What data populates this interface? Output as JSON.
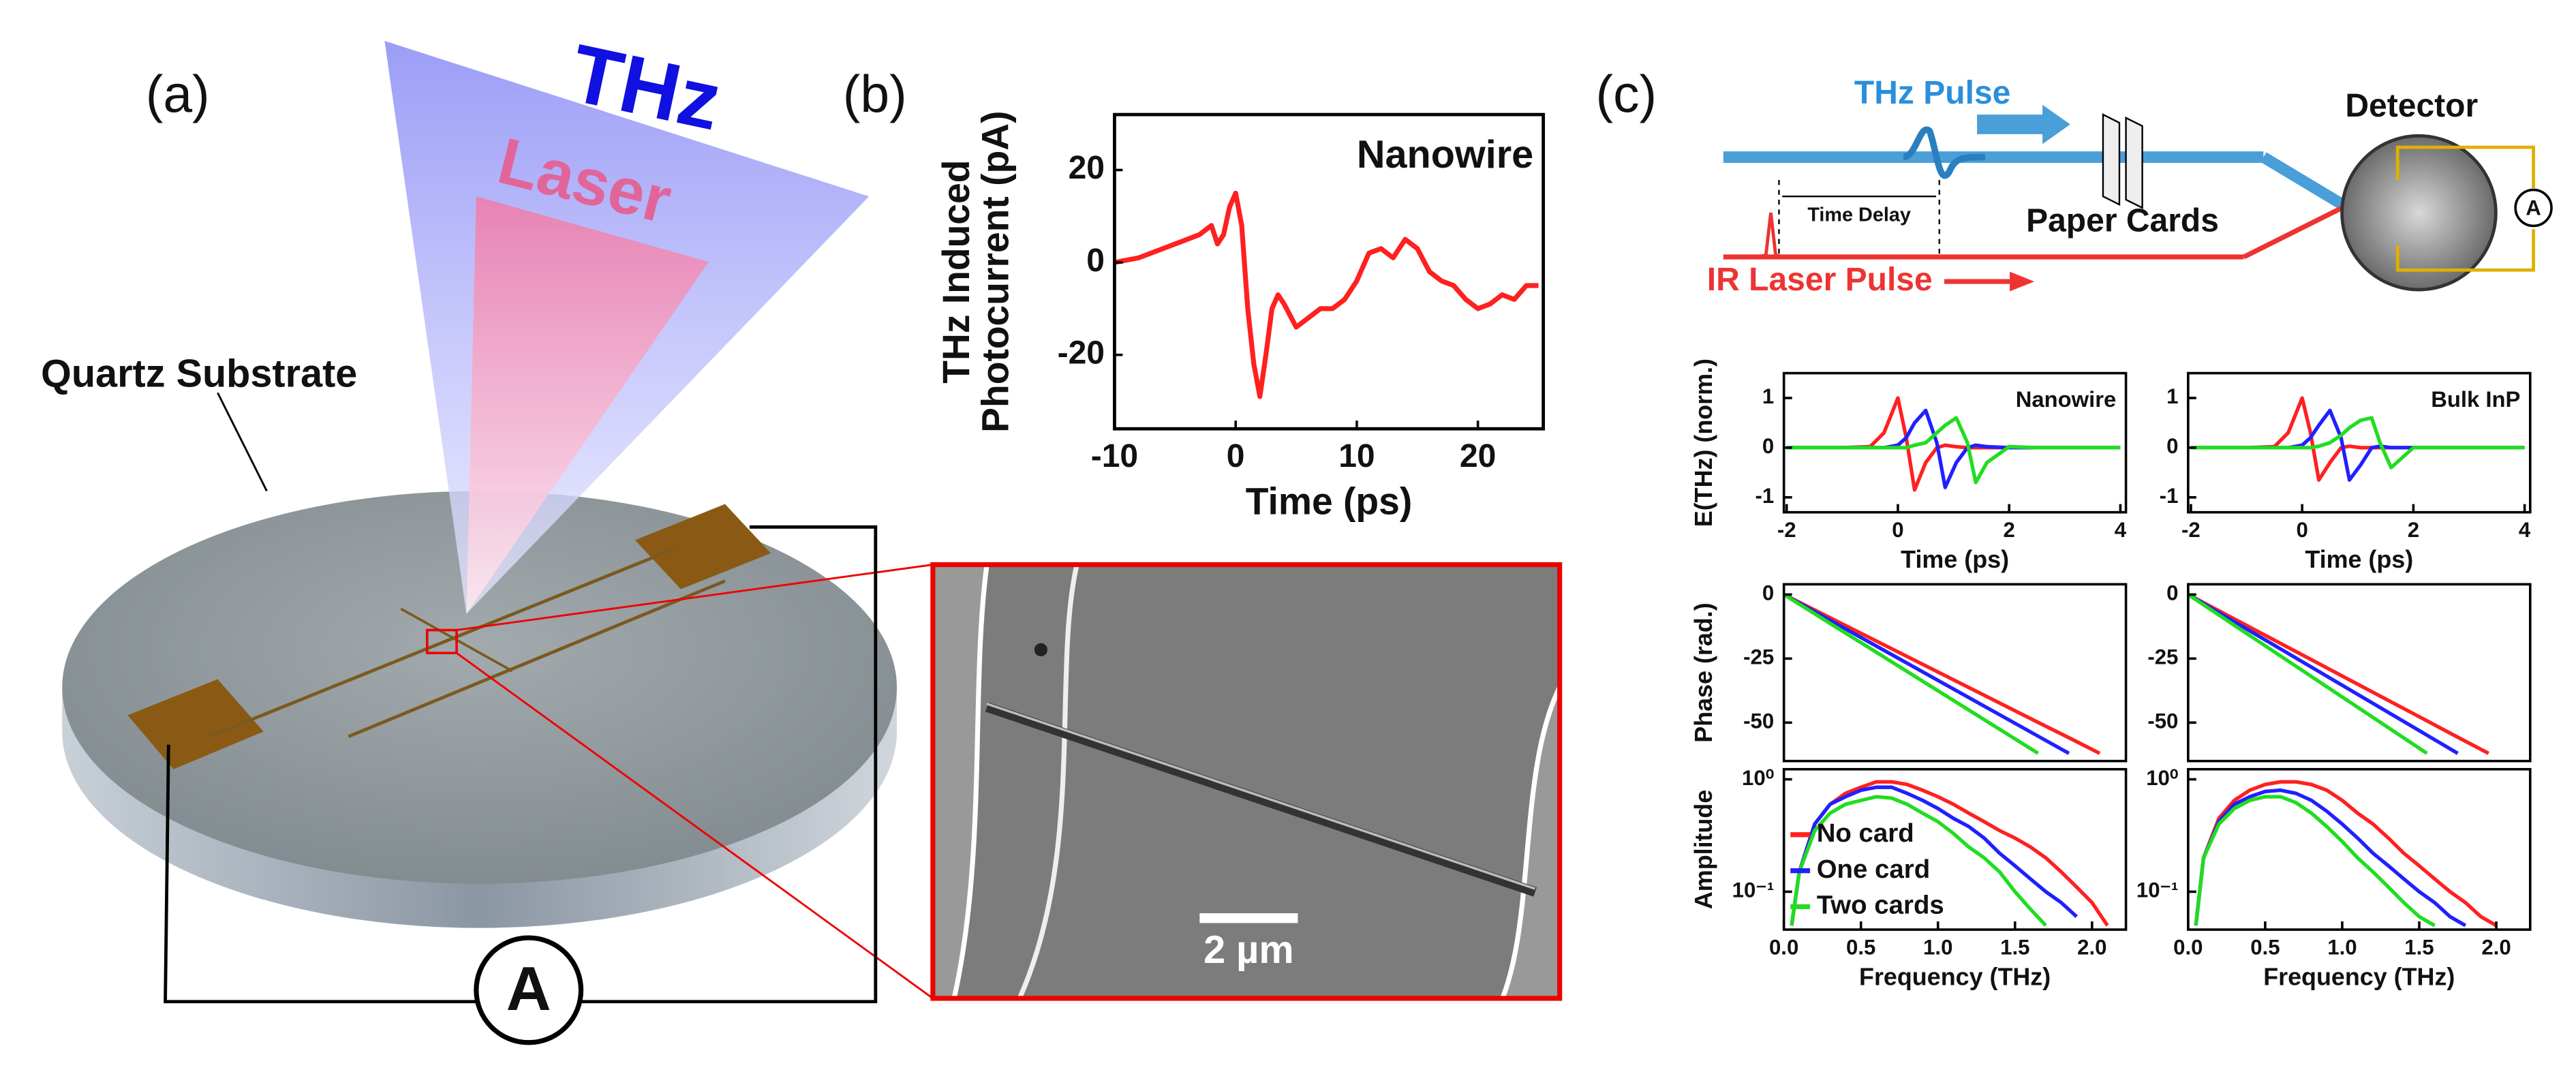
{
  "panel_a": {
    "label": "(a)",
    "beam_thz": "THz",
    "beam_laser": "Laser",
    "substrate": "Quartz Substrate",
    "meter": "A"
  },
  "panel_b": {
    "label": "(b)",
    "scale_bar": "2 µm"
  },
  "panel_c": {
    "label": "(c)",
    "thz_pulse": "THz Pulse",
    "time_delay": "Time Delay",
    "paper_cards": "Paper Cards",
    "ir_laser": "IR Laser Pulse",
    "detector": "Detector",
    "meter": "A"
  },
  "chart_data": [
    {
      "type": "line",
      "annotation": "Nanowire",
      "xlabel": "Time (ps)",
      "ylabel": [
        "THz Induced",
        "Photocurrent (pA)"
      ],
      "x": [
        -10,
        -8,
        -6,
        -4,
        -3,
        -2,
        -1.5,
        -1,
        -0.5,
        0,
        0.5,
        1,
        1.5,
        2,
        2.5,
        3,
        3.5,
        4,
        5,
        6,
        7,
        8,
        9,
        10,
        11,
        12,
        13,
        14,
        15,
        16,
        17,
        18,
        19,
        20,
        21,
        22,
        23,
        24,
        25
      ],
      "series": [
        {
          "color": "#ff2020",
          "values": [
            0,
            1,
            3,
            5,
            6,
            8,
            4,
            6,
            12,
            15,
            8,
            -10,
            -22,
            -29,
            -20,
            -10,
            -7,
            -9,
            -14,
            -12,
            -10,
            -10,
            -8,
            -4,
            2,
            3,
            1,
            5,
            3,
            -2,
            -4,
            -5,
            -8,
            -10,
            -9,
            -7,
            -8,
            -5,
            -5
          ]
        }
      ],
      "xlim": [
        -10,
        25.4
      ],
      "ylim": [
        -36,
        32
      ],
      "xticks": [
        -10,
        0,
        10,
        20
      ],
      "yticks": [
        -20,
        0,
        20
      ]
    },
    {
      "type": "line",
      "annotation": "Nanowire",
      "xlabel": "Time (ps)",
      "ylabel": "E(THz) (norm.)",
      "x": [
        -2,
        -1.5,
        -1,
        -0.5,
        -0.25,
        0,
        0.15,
        0.3,
        0.5,
        0.7,
        0.85,
        1.05,
        1.25,
        1.4,
        1.6,
        2,
        2.5,
        3,
        4
      ],
      "series": [
        {
          "color": "#ff2020",
          "values": [
            0,
            0,
            0,
            0.02,
            0.3,
            1,
            0.2,
            -0.85,
            -0.3,
            0,
            0.05,
            0.02,
            0,
            0,
            0,
            0,
            0,
            0,
            0
          ]
        },
        {
          "color": "#2020ff",
          "values": [
            0,
            0,
            0,
            0,
            0,
            0.05,
            0.2,
            0.5,
            0.75,
            0.1,
            -0.8,
            -0.3,
            0,
            0.05,
            0.02,
            0,
            0,
            0,
            0
          ]
        },
        {
          "color": "#20dd20",
          "values": [
            0,
            0,
            0,
            0,
            0,
            0,
            0,
            0.05,
            0.1,
            0.3,
            0.45,
            0.6,
            0.1,
            -0.7,
            -0.3,
            0.02,
            0,
            0,
            0
          ]
        }
      ],
      "xlim": [
        -2.05,
        4.1
      ],
      "ylim": [
        -1.3,
        1.5
      ],
      "xticks": [
        -2,
        0,
        2,
        4
      ],
      "yticks": [
        -1,
        0,
        1
      ]
    },
    {
      "type": "line",
      "annotation": "Bulk InP",
      "xlabel": "Time (ps)",
      "x": [
        -2,
        -1.5,
        -1,
        -0.5,
        -0.25,
        0,
        0.15,
        0.3,
        0.5,
        0.7,
        0.85,
        1.05,
        1.25,
        1.4,
        1.6,
        2,
        2.5,
        3,
        4
      ],
      "series": [
        {
          "color": "#ff2020",
          "values": [
            0,
            0,
            0,
            0.02,
            0.3,
            1,
            0.3,
            -0.65,
            -0.3,
            0,
            0.03,
            0,
            0,
            0,
            0,
            0,
            0,
            0,
            0
          ]
        },
        {
          "color": "#2020ff",
          "values": [
            0,
            0,
            0,
            0,
            0,
            0.05,
            0.2,
            0.45,
            0.75,
            0.2,
            -0.65,
            -0.35,
            0,
            0.03,
            0,
            0,
            0,
            0,
            0
          ]
        },
        {
          "color": "#20dd20",
          "values": [
            0,
            0,
            0,
            0,
            0,
            0,
            0,
            0.03,
            0.1,
            0.25,
            0.4,
            0.55,
            0.6,
            0.1,
            -0.4,
            0,
            0,
            0,
            0
          ]
        }
      ],
      "xlim": [
        -2.05,
        4.1
      ],
      "ylim": [
        -1.3,
        1.5
      ],
      "xticks": [
        -2,
        0,
        2,
        4
      ],
      "yticks": [
        -1,
        0,
        1
      ]
    },
    {
      "type": "line",
      "ylabel": "Phase (rad.)",
      "x": [
        0,
        1.65,
        1.85,
        2.05
      ],
      "series": [
        {
          "color": "#ff2020",
          "values": [
            0,
            -49.9,
            -55.9,
            -62
          ]
        },
        {
          "color": "#2020ff",
          "values": [
            0,
            -55.3,
            -62,
            null
          ]
        },
        {
          "color": "#20dd20",
          "values": [
            0,
            -62,
            null,
            null
          ]
        }
      ],
      "xlim": [
        0,
        2.22
      ],
      "ylim": [
        -65,
        4
      ],
      "yticks": [
        0,
        -25,
        -50
      ]
    },
    {
      "type": "line",
      "x": [
        0,
        1.55,
        1.75,
        1.95
      ],
      "series": [
        {
          "color": "#ff2020",
          "values": [
            0,
            -49.3,
            -55.7,
            -62
          ]
        },
        {
          "color": "#2020ff",
          "values": [
            0,
            -54.9,
            -62,
            null
          ]
        },
        {
          "color": "#20dd20",
          "values": [
            0,
            -62,
            null,
            null
          ]
        }
      ],
      "xlim": [
        0,
        2.22
      ],
      "ylim": [
        -65,
        4
      ],
      "yticks": [
        0,
        -25,
        -50
      ]
    },
    {
      "type": "line",
      "log_y": true,
      "legend": "lower left",
      "ylabel": "Amplitude",
      "xlabel": "Frequency (THz)",
      "x": [
        0.05,
        0.1,
        0.2,
        0.3,
        0.4,
        0.5,
        0.6,
        0.7,
        0.8,
        0.9,
        1.0,
        1.1,
        1.2,
        1.3,
        1.4,
        1.5,
        1.6,
        1.7,
        1.8,
        1.9,
        2.0,
        2.1
      ],
      "series": [
        {
          "name": "No card",
          "color": "#ff2020",
          "values": [
            0.05,
            0.15,
            0.4,
            0.6,
            0.75,
            0.85,
            0.95,
            0.95,
            0.9,
            0.8,
            0.7,
            0.6,
            0.5,
            0.42,
            0.35,
            0.3,
            0.25,
            0.2,
            0.15,
            0.11,
            0.08,
            0.05
          ]
        },
        {
          "name": "One card",
          "color": "#2020ff",
          "values": [
            0.05,
            0.15,
            0.4,
            0.6,
            0.7,
            0.8,
            0.85,
            0.85,
            0.75,
            0.65,
            0.55,
            0.45,
            0.38,
            0.3,
            0.22,
            0.17,
            0.13,
            0.1,
            0.08,
            0.06,
            null,
            null
          ]
        },
        {
          "name": "Two cards",
          "color": "#20dd20",
          "values": [
            0.05,
            0.15,
            0.35,
            0.5,
            0.6,
            0.65,
            0.7,
            0.68,
            0.6,
            0.5,
            0.42,
            0.33,
            0.25,
            0.2,
            0.15,
            0.1,
            0.07,
            0.05,
            null,
            null,
            null,
            null
          ]
        }
      ],
      "xlim": [
        0,
        2.22
      ],
      "ylim": [
        0.046,
        1.23
      ],
      "xticks": [
        {
          "value": 0,
          "label": "0.0"
        },
        0.5,
        {
          "value": 1,
          "label": "1.0"
        },
        1.5,
        {
          "value": 2,
          "label": "2.0"
        }
      ],
      "yticks": [
        {
          "value": 0.1,
          "label": "10⁻¹"
        },
        {
          "value": 1,
          "label": "10⁰"
        }
      ]
    },
    {
      "type": "line",
      "log_y": true,
      "xlabel": "Frequency (THz)",
      "x": [
        0.05,
        0.1,
        0.2,
        0.3,
        0.4,
        0.5,
        0.6,
        0.7,
        0.8,
        0.9,
        1.0,
        1.1,
        1.2,
        1.3,
        1.4,
        1.5,
        1.6,
        1.7,
        1.8,
        1.9,
        2.0,
        2.1
      ],
      "series": [
        {
          "color": "#ff2020",
          "values": [
            0.05,
            0.2,
            0.45,
            0.65,
            0.8,
            0.9,
            0.95,
            0.95,
            0.9,
            0.8,
            0.65,
            0.5,
            0.4,
            0.3,
            0.22,
            0.17,
            0.13,
            0.1,
            0.08,
            0.06,
            0.05,
            null
          ]
        },
        {
          "color": "#2020ff",
          "values": [
            0.05,
            0.2,
            0.42,
            0.6,
            0.7,
            0.78,
            0.8,
            0.75,
            0.65,
            0.52,
            0.4,
            0.3,
            0.22,
            0.17,
            0.13,
            0.1,
            0.08,
            0.06,
            0.05,
            null,
            null,
            null
          ]
        },
        {
          "color": "#20dd20",
          "values": [
            0.05,
            0.2,
            0.4,
            0.55,
            0.65,
            0.7,
            0.7,
            0.62,
            0.5,
            0.38,
            0.28,
            0.2,
            0.15,
            0.11,
            0.08,
            0.06,
            0.05,
            null,
            null,
            null,
            null,
            null
          ]
        }
      ],
      "xlim": [
        0,
        2.22
      ],
      "ylim": [
        0.046,
        1.23
      ],
      "xticks": [
        {
          "value": 0,
          "label": "0.0"
        },
        0.5,
        {
          "value": 1,
          "label": "1.0"
        },
        1.5,
        {
          "value": 2,
          "label": "2.0"
        }
      ],
      "yticks": [
        {
          "value": 0.1,
          "label": "10⁻¹"
        },
        {
          "value": 1,
          "label": "10⁰"
        }
      ]
    }
  ]
}
